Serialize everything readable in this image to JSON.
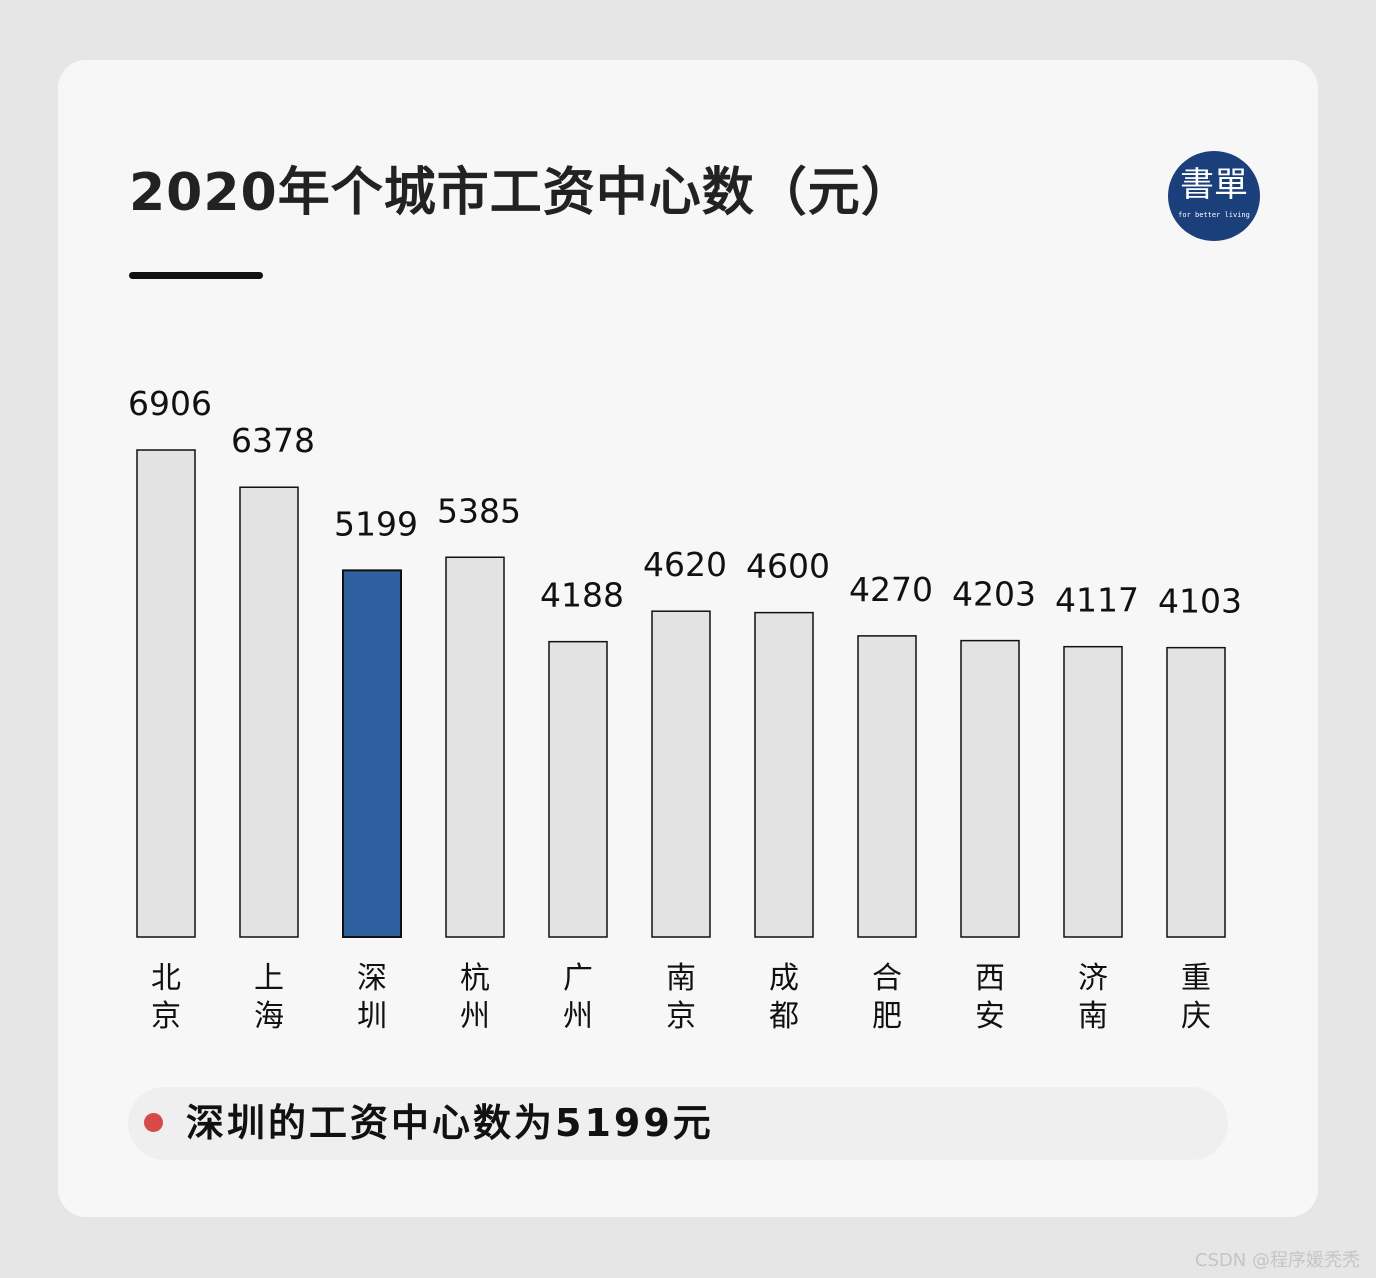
{
  "title": "2020年个城市工资中心数（元）",
  "logo": {
    "text": "書單",
    "subtitle": "for better living",
    "bg_color": "#1b3f7a"
  },
  "caption": {
    "text": "深圳的工资中心数为5199元",
    "dot_color": "#d64a4a"
  },
  "watermark": "CSDN @程序媛秃秃",
  "chart_data": {
    "type": "bar",
    "title": "2020年个城市工资中心数（元）",
    "xlabel": "",
    "ylabel": "",
    "ylim": [
      0,
      6906
    ],
    "grid": false,
    "categories": [
      "北京",
      "上海",
      "深圳",
      "杭州",
      "广州",
      "南京",
      "成都",
      "合肥",
      "西安",
      "济南",
      "重庆"
    ],
    "values": [
      6906,
      6378,
      5199,
      5385,
      4188,
      4620,
      4600,
      4270,
      4203,
      4117,
      4103
    ],
    "value_labels": [
      "6906",
      "6378",
      "5199",
      "5385",
      "4188",
      "4620",
      "4600",
      "4270",
      "4203",
      "4117",
      "4103"
    ],
    "highlight_category": "深圳",
    "colors": {
      "bar": "#e3e3e3",
      "highlight": "#2e5f9f",
      "stroke": "#111111"
    }
  }
}
